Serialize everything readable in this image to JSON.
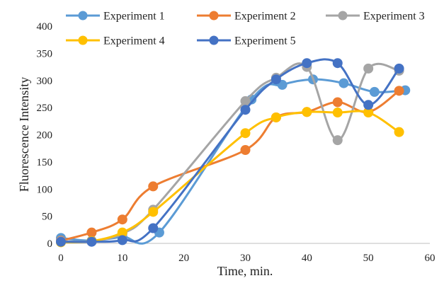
{
  "chart_data": {
    "type": "line",
    "xlabel": "Time, min.",
    "ylabel": "Fluorescence Intensity",
    "xlim": [
      0,
      60
    ],
    "ylim": [
      0,
      400
    ],
    "xticks": [
      0,
      10,
      20,
      30,
      40,
      50,
      60
    ],
    "yticks": [
      0,
      50,
      100,
      150,
      200,
      250,
      300,
      350,
      400
    ],
    "smooth": true,
    "grid": false,
    "legend_position": "top",
    "series": [
      {
        "name": "Experiment 1",
        "color": "#5b9bd5",
        "x": [
          0,
          5,
          10,
          16,
          31,
          36,
          41,
          46,
          51,
          56
        ],
        "y": [
          10,
          5,
          12,
          20,
          265,
          292,
          302,
          295,
          279,
          282
        ]
      },
      {
        "name": "Experiment 2",
        "color": "#ed7d31",
        "x": [
          0,
          5,
          10,
          15,
          30,
          35,
          40,
          45,
          50,
          55
        ],
        "y": [
          5,
          20,
          44,
          105,
          172,
          232,
          242,
          260,
          242,
          281
        ]
      },
      {
        "name": "Experiment 3",
        "color": "#a5a5a5",
        "x": [
          0,
          5,
          10,
          15,
          30,
          35,
          40,
          45,
          50,
          55
        ],
        "y": [
          4,
          4,
          18,
          62,
          262,
          305,
          325,
          190,
          322,
          318
        ]
      },
      {
        "name": "Experiment 4",
        "color": "#ffc000",
        "x": [
          0,
          5,
          10,
          15,
          30,
          35,
          40,
          45,
          50,
          55
        ],
        "y": [
          2,
          4,
          20,
          58,
          203,
          232,
          242,
          241,
          241,
          205
        ]
      },
      {
        "name": "Experiment 5",
        "color": "#4472c4",
        "x": [
          0,
          5,
          10,
          15,
          30,
          35,
          40,
          45,
          50,
          55
        ],
        "y": [
          3,
          3,
          6,
          28,
          246,
          302,
          332,
          332,
          255,
          322
        ]
      }
    ]
  }
}
